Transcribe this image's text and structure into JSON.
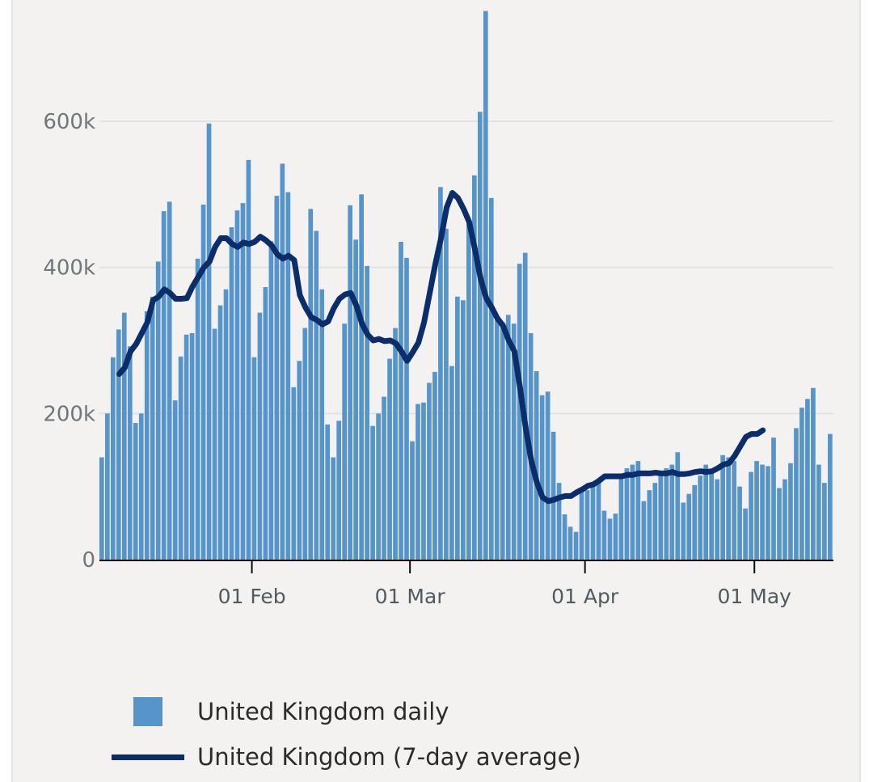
{
  "chart_data": {
    "type": "bar",
    "y_ticks": [
      {
        "value": 0,
        "label": "0"
      },
      {
        "value": 200000,
        "label": "200k"
      },
      {
        "value": 400000,
        "label": "400k"
      },
      {
        "value": 600000,
        "label": "600k"
      }
    ],
    "ylim": [
      0,
      750000
    ],
    "x_start": "2022-01-05",
    "x_ticks": [
      {
        "date": "2022-02-01",
        "label": "01 Feb"
      },
      {
        "date": "2022-03-01",
        "label": "01 Mar"
      },
      {
        "date": "2022-04-01",
        "label": "01 Apr"
      },
      {
        "date": "2022-05-01",
        "label": "01 May"
      }
    ],
    "grid": true,
    "legend_position": "bottom",
    "series": [
      {
        "name": "United Kingdom daily",
        "type": "bar",
        "color": "#5694ca",
        "values": [
          140000,
          200000,
          277000,
          315000,
          338000,
          292000,
          187000,
          200000,
          340000,
          360000,
          408000,
          477000,
          490000,
          218000,
          278000,
          308000,
          310000,
          412000,
          486000,
          597000,
          316000,
          348000,
          370000,
          455000,
          478000,
          488000,
          547000,
          277000,
          338000,
          373000,
          436000,
          498000,
          542000,
          503000,
          236000,
          272000,
          317000,
          480000,
          450000,
          370000,
          185000,
          140000,
          190000,
          323000,
          485000,
          438000,
          500000,
          402000,
          183000,
          200000,
          223000,
          275000,
          317000,
          435000,
          413000,
          162000,
          213000,
          215000,
          242000,
          257000,
          510000,
          453000,
          265000,
          360000,
          355000,
          462000,
          526000,
          613000,
          751000,
          495000,
          328000,
          325000,
          335000,
          323000,
          405000,
          420000,
          310000,
          258000,
          225000,
          230000,
          175000,
          105000,
          62000,
          45000,
          38000,
          97000,
          95000,
          105000,
          108000,
          67000,
          56000,
          63000,
          115000,
          125000,
          130000,
          135000,
          80000,
          95000,
          105000,
          120000,
          125000,
          130000,
          147000,
          78000,
          90000,
          102000,
          115000,
          130000,
          120000,
          110000,
          143000,
          140000,
          135000,
          100000,
          70000,
          120000,
          135000,
          130000,
          128000,
          167000,
          98000,
          110000,
          132000,
          180000,
          208000,
          220000,
          235000,
          130000,
          105000,
          172000
        ],
        "value_offset_days": 0
      },
      {
        "name": "United Kingdom (7-day average)",
        "type": "line",
        "color": "#0b2e6b",
        "start_offset_days": 3,
        "values": [
          254000,
          263000,
          285000,
          295000,
          310000,
          325000,
          355000,
          360000,
          370000,
          365000,
          357000,
          357000,
          358000,
          374000,
          387000,
          400000,
          408000,
          428000,
          440000,
          440000,
          432000,
          428000,
          434000,
          432000,
          435000,
          442000,
          437000,
          430000,
          418000,
          412000,
          416000,
          410000,
          362000,
          345000,
          332000,
          328000,
          322000,
          326000,
          344000,
          357000,
          363000,
          365000,
          348000,
          323000,
          308000,
          300000,
          302000,
          299000,
          300000,
          296000,
          285000,
          272000,
          284000,
          297000,
          325000,
          365000,
          405000,
          440000,
          482000,
          502000,
          495000,
          480000,
          462000,
          425000,
          385000,
          358000,
          345000,
          330000,
          320000,
          300000,
          285000,
          235000,
          180000,
          135000,
          105000,
          85000,
          80000,
          82000,
          85000,
          87000,
          87000,
          92000,
          96000,
          101000,
          103000,
          108000,
          114000,
          114000,
          114000,
          114000,
          116000,
          116000,
          118000,
          118000,
          118000,
          119000,
          118000,
          118000,
          120000,
          117000,
          117000,
          118000,
          120000,
          121000,
          120000,
          121000,
          125000,
          130000,
          132000,
          142000,
          155000,
          168000,
          172000,
          172000,
          177000
        ]
      }
    ]
  }
}
